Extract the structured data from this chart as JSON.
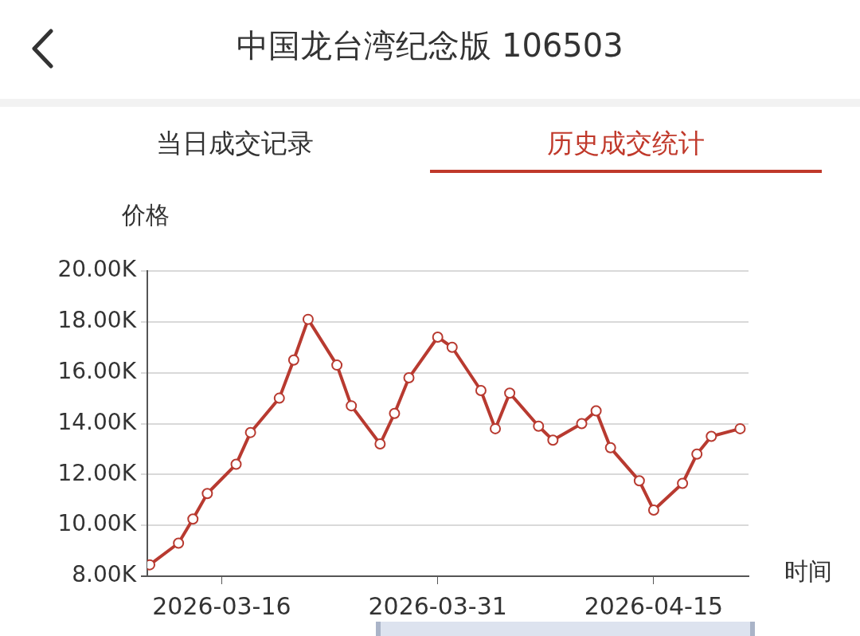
{
  "chart_data": {
    "type": "line",
    "title": "中国龙台湾纪念版 106503",
    "annotations": [
      "当日成交记录",
      "历史成交统计"
    ],
    "ylabel": "价格",
    "xlabel": "时间",
    "x": [
      "2026-03-11",
      "2026-03-13",
      "2026-03-14",
      "2026-03-15",
      "2026-03-17",
      "2026-03-18",
      "2026-03-20",
      "2026-03-21",
      "2026-03-22",
      "2026-03-24",
      "2026-03-25",
      "2026-03-27",
      "2026-03-28",
      "2026-03-29",
      "2026-03-31",
      "2026-04-01",
      "2026-04-03",
      "2026-04-04",
      "2026-04-05",
      "2026-04-07",
      "2026-04-08",
      "2026-04-10",
      "2026-04-11",
      "2026-04-12",
      "2026-04-14",
      "2026-04-15",
      "2026-04-17",
      "2026-04-18",
      "2026-04-19",
      "2026-04-21"
    ],
    "series": [
      {
        "color": "#b83a30",
        "values": [
          8450,
          9300,
          10250,
          11250,
          12400,
          13650,
          15000,
          16500,
          18100,
          16300,
          14700,
          13200,
          14400,
          15800,
          17400,
          17000,
          15300,
          13800,
          15200,
          13900,
          13350,
          14000,
          14500,
          13050,
          11750,
          10600,
          11650,
          12800,
          13500,
          13800
        ]
      }
    ],
    "xlim": [
      "2026-03-10T20:00",
      "2026-04-21T14:00"
    ],
    "xticks": [
      "2026-03-16",
      "2026-03-31",
      "2026-04-15"
    ],
    "ylim": [
      8000,
      20000
    ],
    "yticks": [
      {
        "value": 8000,
        "label": "8.00K"
      },
      {
        "value": 10000,
        "label": "10.00K"
      },
      {
        "value": 12000,
        "label": "12.00K"
      },
      {
        "value": 14000,
        "label": "14.00K"
      },
      {
        "value": 16000,
        "label": "16.00K"
      },
      {
        "value": 18000,
        "label": "18.00K"
      },
      {
        "value": 20000,
        "label": "20.00K"
      }
    ],
    "grid": "y",
    "legend": false,
    "marker": "circle",
    "line_style": "solid"
  }
}
